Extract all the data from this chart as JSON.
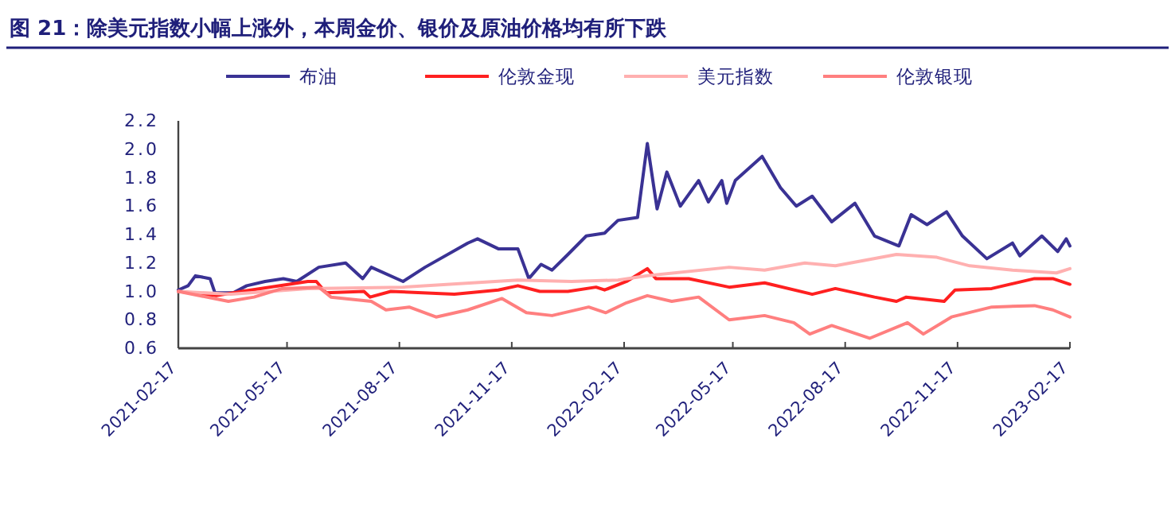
{
  "chart_data": {
    "type": "line",
    "title": "图 21：除美元指数小幅上涨外，本周金价、银价及原油价格均有所下跌",
    "legend": "top",
    "grid": false,
    "xlim": [
      "2021-02-17",
      "2023-02-17"
    ],
    "xticks": [
      "2021-02-17",
      "2021-05-17",
      "2021-08-17",
      "2021-11-17",
      "2022-02-17",
      "2022-05-17",
      "2022-08-17",
      "2022-11-17",
      "2023-02-17"
    ],
    "ylim": [
      0.6,
      2.2
    ],
    "yticks": [
      0.6,
      0.8,
      {
        "value": 1,
        "label": "1.0"
      },
      1.2,
      1.4,
      1.6,
      1.8,
      {
        "value": 2,
        "label": "2.0"
      },
      2.2
    ],
    "series": [
      {
        "name": "布油",
        "color": "#3a3294",
        "x": [
          "2021-02-17",
          "2021-02-25",
          "2021-03-03",
          "2021-03-15",
          "2021-03-19",
          "2021-04-03",
          "2021-04-14",
          "2021-04-29",
          "2021-05-14",
          "2021-05-25",
          "2021-06-12",
          "2021-07-04",
          "2021-07-18",
          "2021-07-25",
          "2021-08-20",
          "2021-09-07",
          "2021-10-12",
          "2021-10-20",
          "2021-11-06",
          "2021-11-22",
          "2021-12-01",
          "2021-12-11",
          "2021-12-20",
          "2022-01-02",
          "2022-01-17",
          "2022-02-01",
          "2022-02-12",
          "2022-02-28",
          "2022-03-08",
          "2022-03-16",
          "2022-03-24",
          "2022-04-04",
          "2022-04-19",
          "2022-04-27",
          "2022-05-08",
          "2022-05-12",
          "2022-05-19",
          "2022-06-10",
          "2022-06-25",
          "2022-07-08",
          "2022-07-21",
          "2022-08-06",
          "2022-08-25",
          "2022-09-10",
          "2022-09-30",
          "2022-10-10",
          "2022-10-23",
          "2022-11-08",
          "2022-11-21",
          "2022-12-11",
          "2023-01-01",
          "2023-01-07",
          "2023-01-25",
          "2023-02-07",
          "2023-02-14",
          "2023-02-17"
        ],
        "values": [
          1.01,
          1.04,
          1.11,
          1.09,
          0.99,
          0.99,
          1.04,
          1.07,
          1.09,
          1.07,
          1.17,
          1.2,
          1.09,
          1.17,
          1.07,
          1.17,
          1.34,
          1.37,
          1.3,
          1.3,
          1.09,
          1.19,
          1.15,
          1.26,
          1.39,
          1.41,
          1.5,
          1.52,
          2.04,
          1.58,
          1.84,
          1.6,
          1.78,
          1.63,
          1.78,
          1.62,
          1.78,
          1.95,
          1.73,
          1.6,
          1.67,
          1.49,
          1.62,
          1.39,
          1.32,
          1.54,
          1.47,
          1.56,
          1.39,
          1.23,
          1.34,
          1.25,
          1.39,
          1.28,
          1.37,
          1.32
        ]
      },
      {
        "name": "伦敦金现",
        "color": "#ff2020",
        "x": [
          "2021-02-17",
          "2021-03-20",
          "2021-04-10",
          "2021-06-03",
          "2021-06-10",
          "2021-06-18",
          "2021-07-19",
          "2021-07-24",
          "2021-08-10",
          "2021-10-01",
          "2021-11-06",
          "2021-11-22",
          "2021-12-10",
          "2022-01-02",
          "2022-01-25",
          "2022-02-01",
          "2022-02-19",
          "2022-03-08",
          "2022-03-15",
          "2022-04-11",
          "2022-05-14",
          "2022-06-12",
          "2022-07-21",
          "2022-08-09",
          "2022-09-10",
          "2022-09-28",
          "2022-10-06",
          "2022-11-06",
          "2022-11-15",
          "2022-12-15",
          "2023-01-19",
          "2023-02-03",
          "2023-02-17"
        ],
        "values": [
          1.0,
          0.97,
          1.0,
          1.07,
          1.07,
          0.99,
          1.0,
          0.96,
          1.0,
          0.98,
          1.01,
          1.04,
          1.0,
          1.0,
          1.03,
          1.01,
          1.07,
          1.16,
          1.09,
          1.09,
          1.03,
          1.06,
          0.98,
          1.02,
          0.96,
          0.93,
          0.96,
          0.93,
          1.01,
          1.02,
          1.09,
          1.09,
          1.05
        ]
      },
      {
        "name": "美元指数",
        "color": "#ffb0b0",
        "x": [
          "2021-02-17",
          "2021-04-01",
          "2021-06-03",
          "2021-08-20",
          "2021-11-22",
          "2022-01-05",
          "2022-02-12",
          "2022-03-08",
          "2022-05-14",
          "2022-06-12",
          "2022-07-15",
          "2022-08-09",
          "2022-09-28",
          "2022-10-31",
          "2022-11-27",
          "2023-01-01",
          "2023-02-06",
          "2023-02-17"
        ],
        "values": [
          1.0,
          0.98,
          1.02,
          1.03,
          1.08,
          1.07,
          1.08,
          1.11,
          1.17,
          1.15,
          1.2,
          1.18,
          1.26,
          1.24,
          1.18,
          1.15,
          1.13,
          1.16
        ]
      },
      {
        "name": "伦敦银现",
        "color": "#ff7f7f",
        "x": [
          "2021-02-17",
          "2021-03-30",
          "2021-04-20",
          "2021-05-13",
          "2021-06-12",
          "2021-06-22",
          "2021-07-25",
          "2021-08-06",
          "2021-08-25",
          "2021-09-16",
          "2021-10-12",
          "2021-11-09",
          "2021-11-29",
          "2021-12-20",
          "2022-01-19",
          "2022-02-02",
          "2022-02-19",
          "2022-03-08",
          "2022-03-28",
          "2022-04-19",
          "2022-05-14",
          "2022-06-12",
          "2022-07-06",
          "2022-07-19",
          "2022-08-06",
          "2022-09-06",
          "2022-10-07",
          "2022-10-20",
          "2022-11-12",
          "2022-12-15",
          "2023-01-19",
          "2023-02-03",
          "2023-02-17"
        ],
        "values": [
          1.0,
          0.93,
          0.96,
          1.02,
          1.03,
          0.96,
          0.93,
          0.87,
          0.89,
          0.82,
          0.87,
          0.95,
          0.85,
          0.83,
          0.89,
          0.85,
          0.92,
          0.97,
          0.93,
          0.96,
          0.8,
          0.83,
          0.78,
          0.7,
          0.76,
          0.67,
          0.78,
          0.7,
          0.82,
          0.89,
          0.9,
          0.87,
          0.82
        ]
      }
    ]
  }
}
